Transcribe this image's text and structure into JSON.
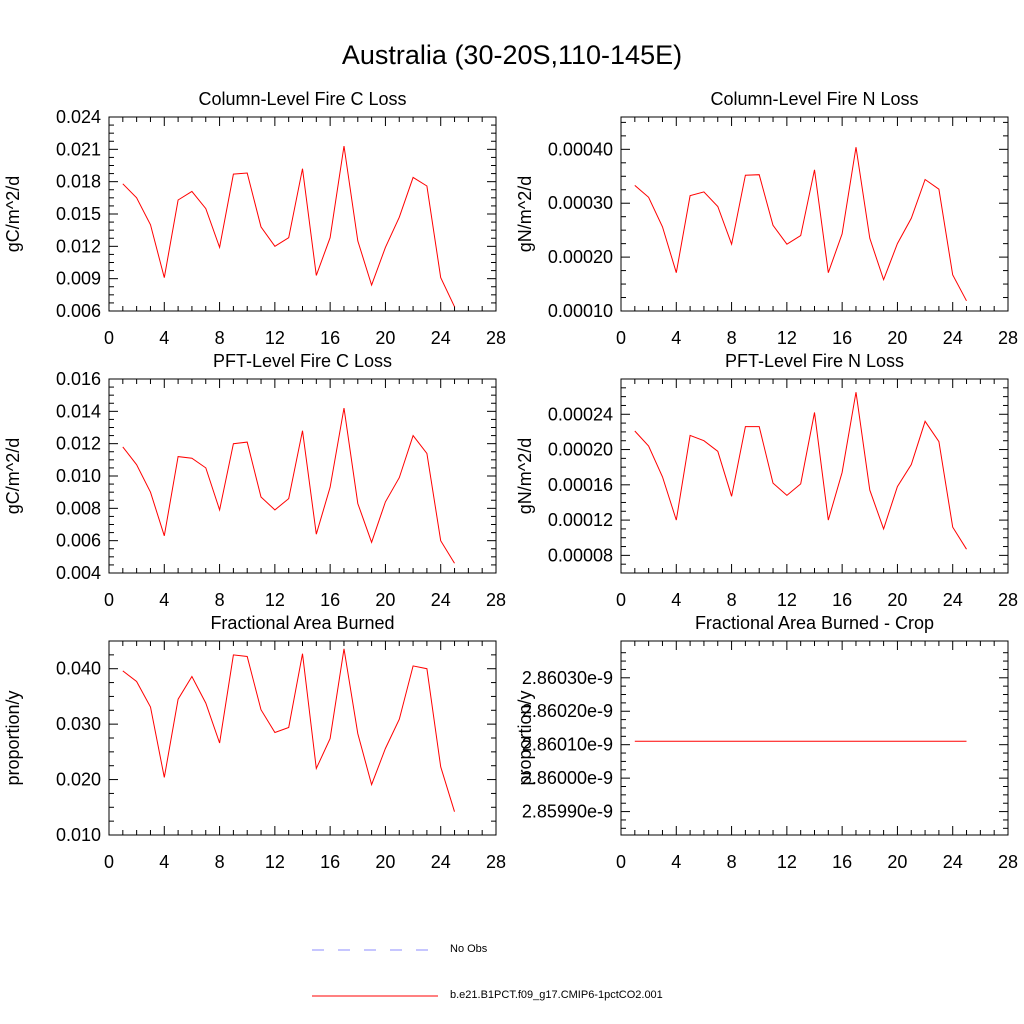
{
  "figure": {
    "title": "Australia (30-20S,110-145E)"
  },
  "legend": [
    {
      "label": "No Obs",
      "color": "#8c8cff",
      "dash": "12,14"
    },
    {
      "label": "b.e21.B1PCT.f09_g17.CMIP6-1pctCO2.001",
      "color": "#ff0000",
      "dash": ""
    }
  ],
  "colors": {
    "series": "#ff0000",
    "axis": "#000000"
  },
  "chart_data": [
    {
      "type": "line",
      "title": "Column-Level Fire C Loss",
      "ylabel": "gC/m^2/d",
      "xlim": [
        0,
        28
      ],
      "xticks": [
        0,
        4,
        8,
        12,
        16,
        20,
        24,
        28
      ],
      "ylim": [
        0.006,
        0.024
      ],
      "yticks": [
        0.006,
        0.009,
        0.012,
        0.015,
        0.018,
        0.021,
        0.024
      ],
      "ytick_labels": [
        "0.006",
        "0.009",
        "0.012",
        "0.015",
        "0.018",
        "0.021",
        "0.024"
      ],
      "x": [
        1,
        2,
        3,
        4,
        5,
        6,
        7,
        8,
        9,
        10,
        11,
        12,
        13,
        14,
        15,
        16,
        17,
        18,
        19,
        20,
        21,
        22,
        23,
        24,
        25
      ],
      "series": [
        {
          "values": [
            0.0178,
            0.0165,
            0.014,
            0.0091,
            0.0163,
            0.0171,
            0.0155,
            0.0119,
            0.0187,
            0.0188,
            0.0138,
            0.012,
            0.0128,
            0.0192,
            0.0093,
            0.0128,
            0.0213,
            0.0125,
            0.0084,
            0.0119,
            0.0147,
            0.0184,
            0.0176,
            0.0091,
            0.0064
          ]
        }
      ]
    },
    {
      "type": "line",
      "title": "Column-Level Fire N Loss",
      "ylabel": "gN/m^2/d",
      "xlim": [
        0,
        28
      ],
      "xticks": [
        0,
        4,
        8,
        12,
        16,
        20,
        24,
        28
      ],
      "ylim": [
        0.0001,
        0.00046
      ],
      "yticks": [
        0.0001,
        0.0002,
        0.0003,
        0.0004
      ],
      "ytick_labels": [
        "0.00010",
        "0.00020",
        "0.00030",
        "0.00040"
      ],
      "x": [
        1,
        2,
        3,
        4,
        5,
        6,
        7,
        8,
        9,
        10,
        11,
        12,
        13,
        14,
        15,
        16,
        17,
        18,
        19,
        20,
        21,
        22,
        23,
        24,
        25
      ],
      "series": [
        {
          "values": [
            0.000333,
            0.000311,
            0.000256,
            0.000171,
            0.000314,
            0.000321,
            0.000294,
            0.000224,
            0.000352,
            0.000353,
            0.000259,
            0.000224,
            0.00024,
            0.000362,
            0.000171,
            0.000243,
            0.000404,
            0.000235,
            0.000158,
            0.000225,
            0.000272,
            0.000344,
            0.000326,
            0.000167,
            0.000119
          ]
        }
      ]
    },
    {
      "type": "line",
      "title": "PFT-Level Fire C Loss",
      "ylabel": "gC/m^2/d",
      "xlim": [
        0,
        28
      ],
      "xticks": [
        0,
        4,
        8,
        12,
        16,
        20,
        24,
        28
      ],
      "ylim": [
        0.004,
        0.016
      ],
      "yticks": [
        0.004,
        0.006,
        0.008,
        0.01,
        0.012,
        0.014,
        0.016
      ],
      "ytick_labels": [
        "0.004",
        "0.006",
        "0.008",
        "0.010",
        "0.012",
        "0.014",
        "0.016"
      ],
      "x": [
        1,
        2,
        3,
        4,
        5,
        6,
        7,
        8,
        9,
        10,
        11,
        12,
        13,
        14,
        15,
        16,
        17,
        18,
        19,
        20,
        21,
        22,
        23,
        24,
        25
      ],
      "series": [
        {
          "values": [
            0.0118,
            0.0107,
            0.009,
            0.0063,
            0.0112,
            0.0111,
            0.0105,
            0.0079,
            0.012,
            0.0121,
            0.0087,
            0.0079,
            0.0086,
            0.0128,
            0.0064,
            0.0093,
            0.0142,
            0.0083,
            0.0059,
            0.0084,
            0.0099,
            0.0125,
            0.0114,
            0.006,
            0.0046
          ]
        }
      ]
    },
    {
      "type": "line",
      "title": "PFT-Level Fire N Loss",
      "ylabel": "gN/m^2/d",
      "xlim": [
        0,
        28
      ],
      "xticks": [
        0,
        4,
        8,
        12,
        16,
        20,
        24,
        28
      ],
      "ylim": [
        6e-05,
        0.00028
      ],
      "yticks": [
        8e-05,
        0.00012,
        0.00016,
        0.0002,
        0.00024
      ],
      "ytick_labels": [
        "0.00008",
        "0.00012",
        "0.00016",
        "0.00020",
        "0.00024"
      ],
      "x": [
        1,
        2,
        3,
        4,
        5,
        6,
        7,
        8,
        9,
        10,
        11,
        12,
        13,
        14,
        15,
        16,
        17,
        18,
        19,
        20,
        21,
        22,
        23,
        24,
        25
      ],
      "series": [
        {
          "values": [
            0.000221,
            0.000204,
            0.000169,
            0.00012,
            0.000216,
            0.00021,
            0.000198,
            0.000147,
            0.000226,
            0.000226,
            0.000162,
            0.000148,
            0.000161,
            0.000242,
            0.00012,
            0.000174,
            0.000265,
            0.000154,
            0.00011,
            0.000158,
            0.000183,
            0.000232,
            0.000209,
            0.000112,
            8.7e-05
          ]
        }
      ]
    },
    {
      "type": "line",
      "title": "Fractional Area Burned",
      "ylabel": "proportion/y",
      "xlim": [
        0,
        28
      ],
      "xticks": [
        0,
        4,
        8,
        12,
        16,
        20,
        24,
        28
      ],
      "ylim": [
        0.01,
        0.045
      ],
      "yticks": [
        0.01,
        0.02,
        0.03,
        0.04
      ],
      "ytick_labels": [
        "0.010",
        "0.020",
        "0.030",
        "0.040"
      ],
      "x": [
        1,
        2,
        3,
        4,
        5,
        6,
        7,
        8,
        9,
        10,
        11,
        12,
        13,
        14,
        15,
        16,
        17,
        18,
        19,
        20,
        21,
        22,
        23,
        24,
        25
      ],
      "series": [
        {
          "values": [
            0.0396,
            0.0377,
            0.0331,
            0.0204,
            0.0345,
            0.0386,
            0.0338,
            0.0266,
            0.0425,
            0.0422,
            0.0326,
            0.0285,
            0.0294,
            0.0427,
            0.022,
            0.0274,
            0.0436,
            0.0283,
            0.0191,
            0.0256,
            0.0309,
            0.0405,
            0.04,
            0.0223,
            0.0142
          ]
        }
      ]
    },
    {
      "type": "line",
      "title": "Fractional Area Burned - Crop",
      "ylabel": "proportion/y",
      "xlim": [
        0,
        28
      ],
      "xticks": [
        0,
        4,
        8,
        12,
        16,
        20,
        24,
        28
      ],
      "ylim": [
        2.85983e-09,
        2.86041e-09
      ],
      "yticks": [
        2.8599e-09,
        2.86e-09,
        2.8601e-09,
        2.8602e-09,
        2.8603e-09
      ],
      "ytick_labels": [
        "2.85990e-9",
        "2.86000e-9",
        "2.86010e-9",
        "2.86020e-9",
        "2.86030e-9"
      ],
      "x": [
        1,
        25
      ],
      "series": [
        {
          "values": [
            2.86011e-09,
            2.86011e-09
          ]
        }
      ]
    }
  ]
}
